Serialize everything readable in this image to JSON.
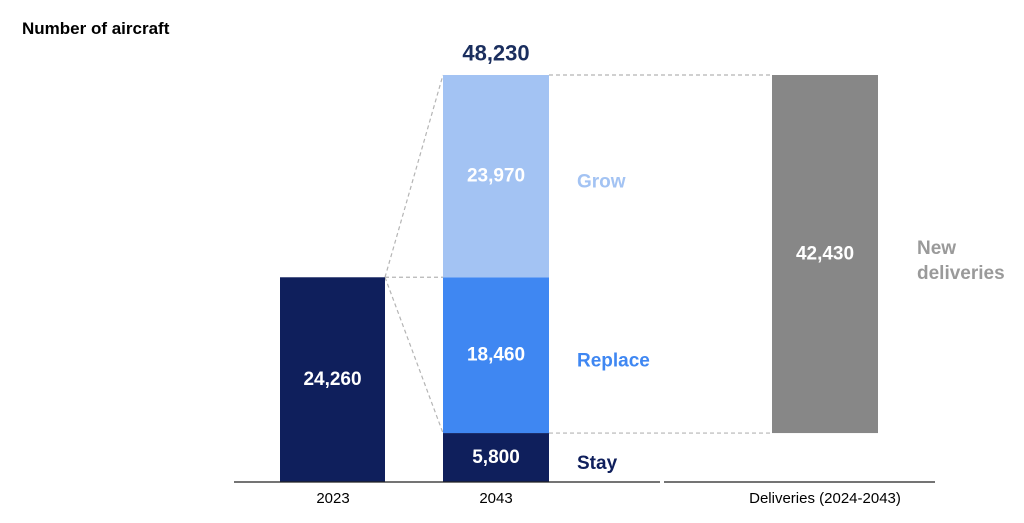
{
  "chart_data": {
    "type": "bar",
    "subtype": "waterfall",
    "ylabel": "Number of aircraft",
    "categories": [
      "2023",
      "2043",
      "Deliveries (2024-2043)"
    ],
    "fleet_2023": {
      "value": 24260,
      "label": "24,260"
    },
    "stack_2043": [
      {
        "name": "Stay",
        "value": 5800,
        "label": "5,800"
      },
      {
        "name": "Replace",
        "value": 18460,
        "label": "18,460"
      },
      {
        "name": "Grow",
        "value": 23970,
        "label": "23,970"
      }
    ],
    "total_2043": {
      "value": 48230,
      "label": "48,230"
    },
    "deliveries": {
      "name_lines": [
        "New",
        "deliveries"
      ],
      "value": 42430,
      "label": "42,430",
      "base": 5800,
      "top": 48230
    },
    "ylim": [
      0,
      48230
    ],
    "grid": false,
    "colors": {
      "fleet_2023": "#0f1f5c",
      "Stay": "#0f1f5c",
      "Replace": "#3f87f2",
      "Grow": "#a3c3f3",
      "deliveries": "#878787",
      "segment_text": "#ffffff",
      "stay_name": "#0f1f5c",
      "replace_name": "#3f87f2",
      "grow_name": "#a3c3f3",
      "deliveries_name": "#9a9a9a",
      "axis_title": "#555555",
      "category_text": "#444444",
      "total_text": "#1a2e5e",
      "connector": "#b5b5b5"
    }
  }
}
